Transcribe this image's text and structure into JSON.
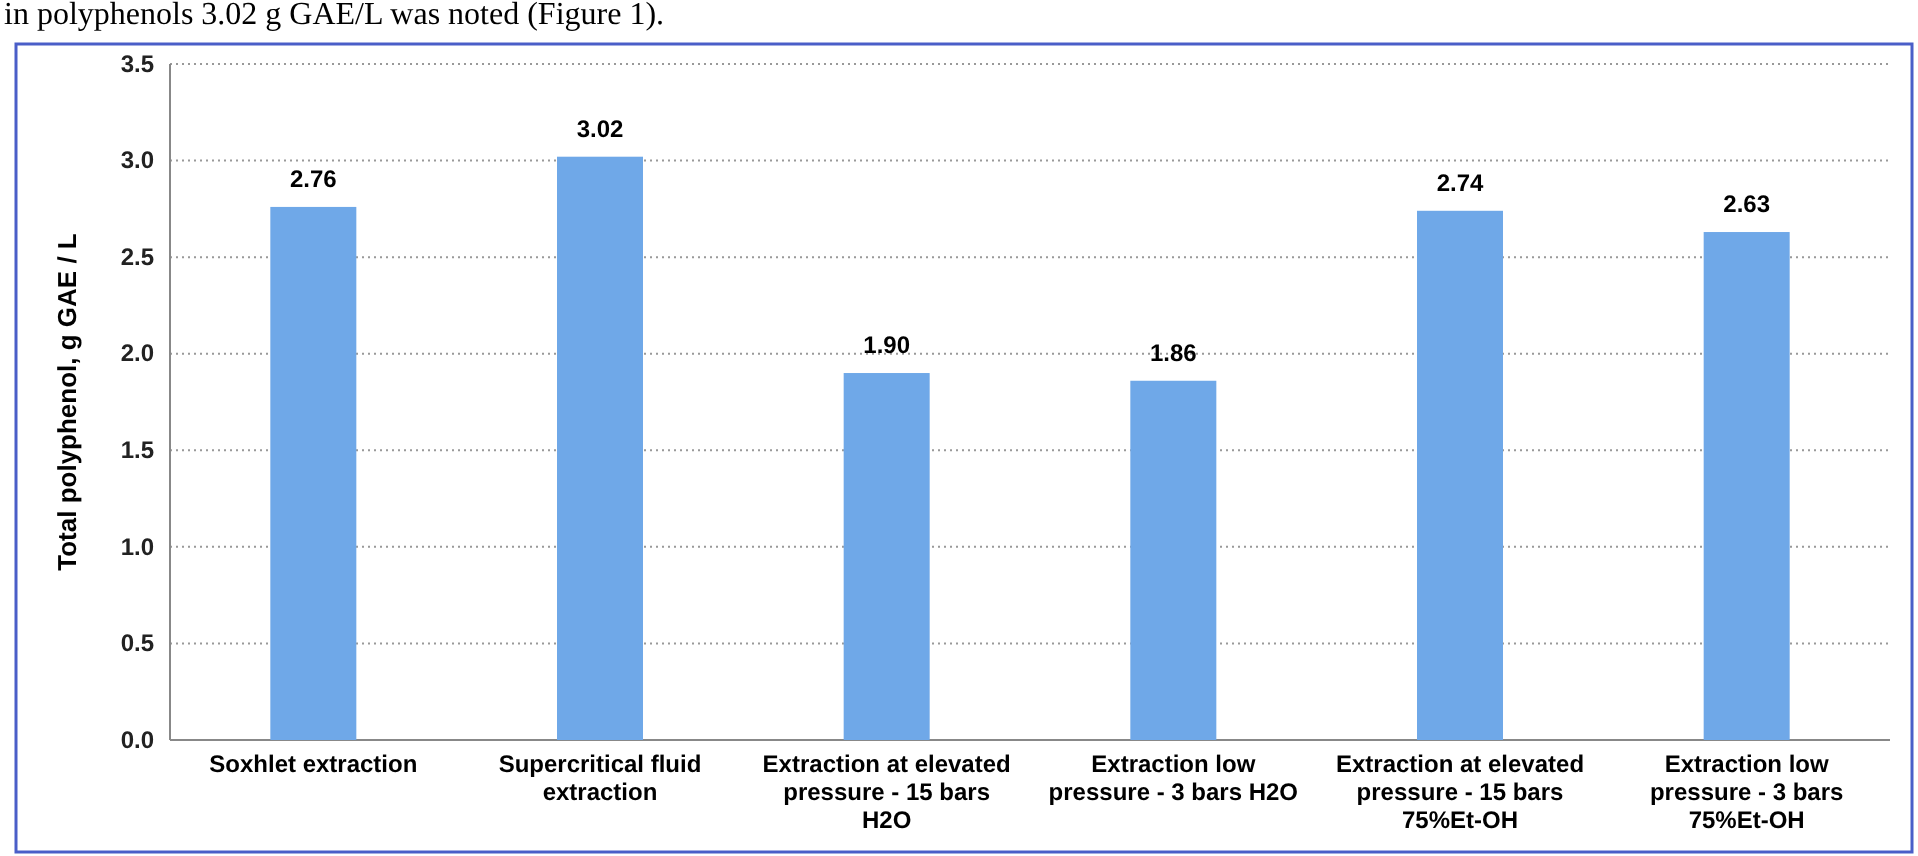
{
  "chart_data": {
    "type": "bar",
    "ylabel": "Total polyphenol, g GAE / L",
    "categories": [
      "Soxhlet extraction",
      "Supercritical fluid extraction",
      "Extraction at elevated pressure - 15 bars H2O",
      "Extraction low pressure - 3 bars H2O",
      "Extraction at elevated pressure - 15 bars 75%Et-OH",
      "Extraction low pressure - 3 bars 75%Et-OH"
    ],
    "values": [
      2.76,
      3.02,
      1.9,
      1.86,
      2.74,
      2.63
    ],
    "value_labels": [
      "2.76",
      "3.02",
      "1.90",
      "1.86",
      "2.74",
      "2.63"
    ],
    "color": "#6fa8e8",
    "ylim": [
      0,
      3.5
    ],
    "yticks": [
      {
        "value": 0,
        "label": "0.0"
      },
      {
        "value": 0.5,
        "label": "0.5"
      },
      {
        "value": 1,
        "label": "1.0"
      },
      {
        "value": 1.5,
        "label": "1.5"
      },
      {
        "value": 2,
        "label": "2.0"
      },
      {
        "value": 2.5,
        "label": "2.5"
      },
      {
        "value": 3,
        "label": "3.0"
      },
      {
        "value": 3.5,
        "label": "3.5"
      }
    ],
    "grid": "y",
    "annotations": [
      "in polyphenols 3.02 g GAE/L was noted (Figure 1)."
    ]
  }
}
